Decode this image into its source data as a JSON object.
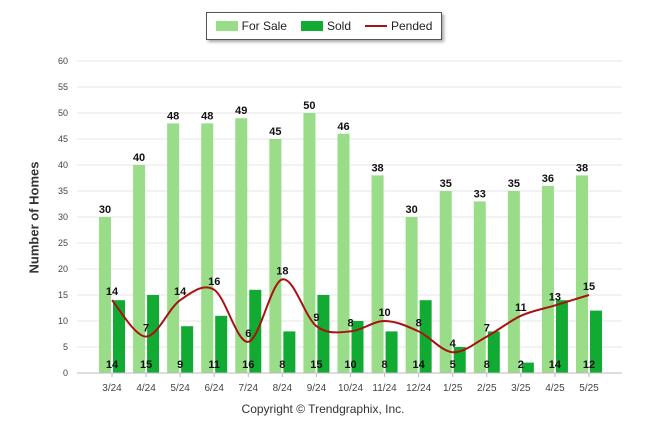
{
  "chart_data": {
    "type": "bar",
    "title": "",
    "xlabel": "",
    "ylabel": "Number of Homes",
    "ylim": [
      0,
      60
    ],
    "yticks": [
      0,
      5,
      10,
      15,
      20,
      25,
      30,
      35,
      40,
      45,
      50,
      55,
      60
    ],
    "grid": true,
    "legend_position": "top-center",
    "categories": [
      "3/24",
      "4/24",
      "5/24",
      "6/24",
      "7/24",
      "8/24",
      "9/24",
      "10/24",
      "11/24",
      "12/24",
      "1/25",
      "2/25",
      "3/25",
      "4/25",
      "5/25"
    ],
    "series": [
      {
        "name": "For Sale",
        "type": "bar",
        "color": "#99dd88",
        "values": [
          30,
          40,
          48,
          48,
          49,
          45,
          50,
          46,
          38,
          30,
          35,
          33,
          35,
          36,
          38
        ]
      },
      {
        "name": "Sold",
        "type": "bar",
        "color": "#11aa33",
        "values": [
          14,
          15,
          9,
          11,
          16,
          8,
          15,
          10,
          8,
          14,
          5,
          8,
          2,
          14,
          12
        ]
      },
      {
        "name": "Pended",
        "type": "line",
        "color": "#aa1111",
        "values": [
          14,
          7,
          14,
          16,
          6,
          18,
          9,
          8,
          10,
          8,
          4,
          7,
          11,
          13,
          15
        ]
      }
    ]
  },
  "copyright": "Copyright © Trendgraphix, Inc."
}
